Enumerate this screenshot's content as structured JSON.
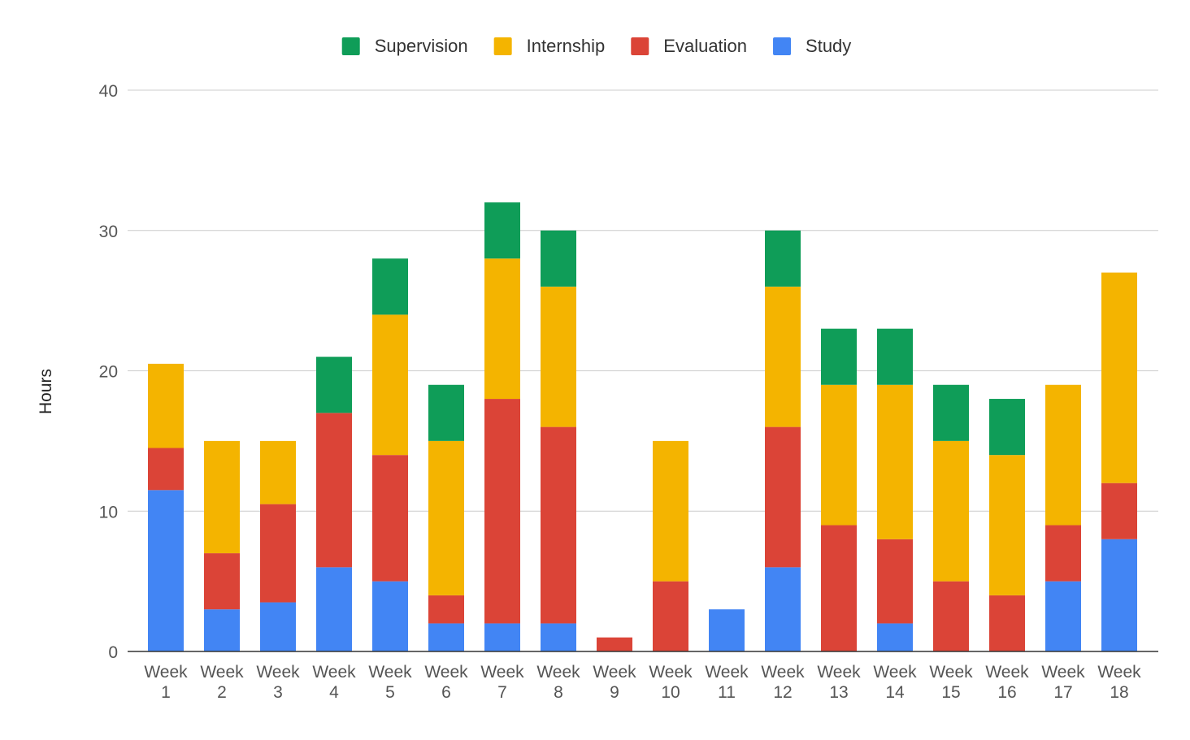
{
  "chart_data": {
    "type": "bar",
    "stacked": true,
    "title": "",
    "xlabel": "",
    "ylabel": "Hours",
    "ylim": [
      0,
      40
    ],
    "yticks": [
      0,
      10,
      20,
      30,
      40
    ],
    "gridlines": true,
    "legend_position": "top-center",
    "categories": [
      [
        "Week",
        "1"
      ],
      [
        "Week",
        "2"
      ],
      [
        "Week",
        "3"
      ],
      [
        "Week",
        "4"
      ],
      [
        "Week",
        "5"
      ],
      [
        "Week",
        "6"
      ],
      [
        "Week",
        "7"
      ],
      [
        "Week",
        "8"
      ],
      [
        "Week",
        "9"
      ],
      [
        "Week",
        "10"
      ],
      [
        "Week",
        "11"
      ],
      [
        "Week",
        "12"
      ],
      [
        "Week",
        "13"
      ],
      [
        "Week",
        "14"
      ],
      [
        "Week",
        "15"
      ],
      [
        "Week",
        "16"
      ],
      [
        "Week",
        "17"
      ],
      [
        "Week",
        "18"
      ]
    ],
    "legend_order": [
      "Supervision",
      "Internship",
      "Evaluation",
      "Study"
    ],
    "series": [
      {
        "name": "Study",
        "color": "#4285F4",
        "values": [
          11.5,
          3,
          3.5,
          6,
          5,
          2,
          2,
          2,
          0,
          0,
          3,
          6,
          0,
          2,
          0,
          0,
          5,
          8
        ]
      },
      {
        "name": "Evaluation",
        "color": "#DB4437",
        "values": [
          3,
          4,
          7,
          11,
          9,
          2,
          16,
          14,
          1,
          5,
          0,
          10,
          9,
          6,
          5,
          4,
          4,
          4
        ]
      },
      {
        "name": "Internship",
        "color": "#F4B400",
        "values": [
          6,
          8,
          4.5,
          0,
          10,
          11,
          10,
          10,
          0,
          10,
          0,
          10,
          10,
          11,
          10,
          10,
          10,
          15
        ]
      },
      {
        "name": "Supervision",
        "color": "#0F9D58",
        "values": [
          0,
          0,
          0,
          4,
          4,
          4,
          4,
          4,
          0,
          0,
          0,
          4,
          4,
          4,
          4,
          4,
          0,
          0
        ]
      }
    ]
  }
}
